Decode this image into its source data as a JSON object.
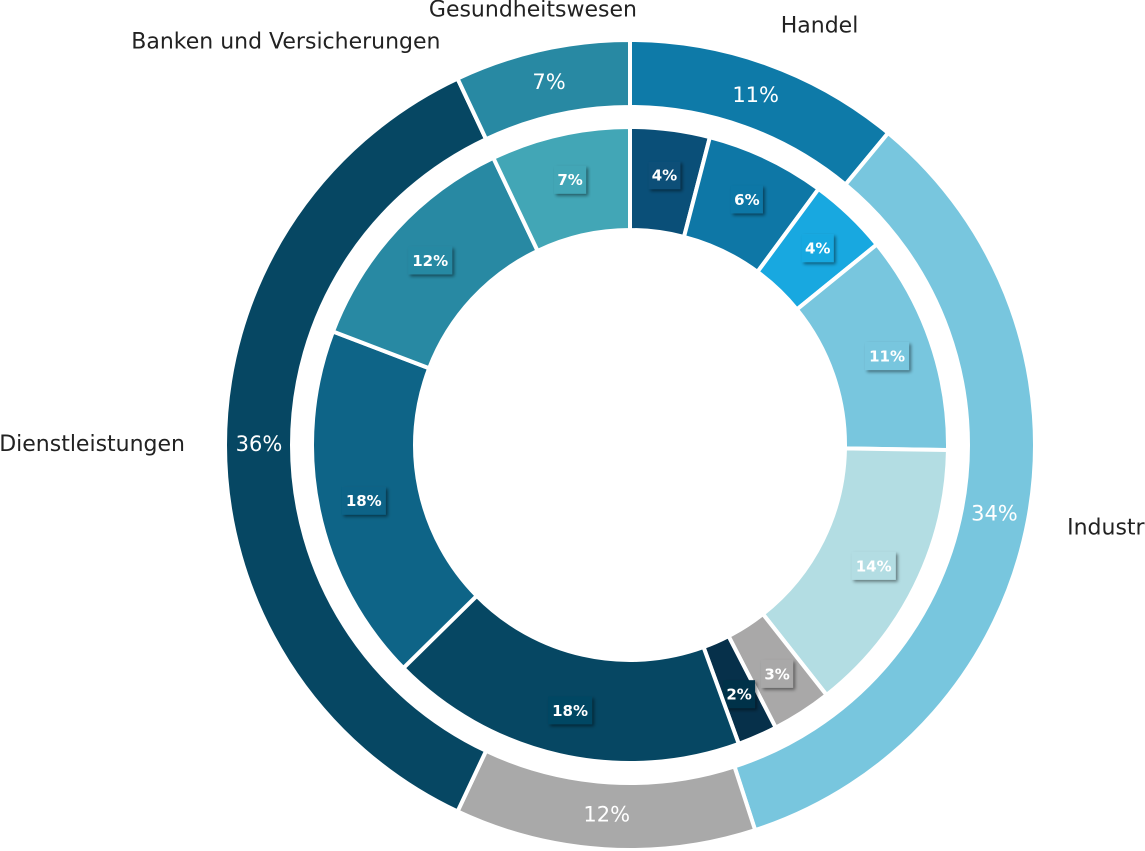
{
  "chart_data": {
    "type": "nested-donut",
    "outer": {
      "categories": [
        "Handel",
        "Industrie",
        null,
        "Dienstleistungen",
        "Banken und Versicherungen",
        "Gesundheitswesen"
      ],
      "values": [
        11,
        34,
        12,
        36,
        0,
        7
      ],
      "value_labels": [
        "11%",
        "34%",
        "12%",
        "36%",
        null,
        "7%"
      ],
      "colors": [
        "#0e7aa8",
        "#78c6de",
        "#a9a9a9",
        "#064763",
        "#064763",
        "#2889a3"
      ]
    },
    "inner": {
      "values": [
        4,
        6,
        4,
        11,
        14,
        3,
        2,
        18,
        18,
        12,
        7
      ],
      "value_labels": [
        "4%",
        "6%",
        "4%",
        "11%",
        "14%",
        "3%",
        "2%",
        "18%",
        "18%",
        "12%",
        "7%"
      ],
      "colors": [
        "#0a4f78",
        "#0e77a6",
        "#18a8e0",
        "#78c6de",
        "#b3dde3",
        "#a9a8a8",
        "#06304a",
        "#064763",
        "#0e6487",
        "#2889a3",
        "#42a6b6"
      ]
    }
  }
}
